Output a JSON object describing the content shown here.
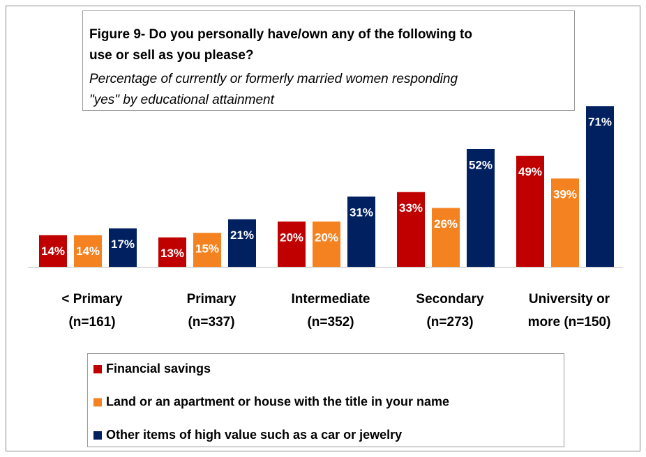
{
  "chart_data": {
    "type": "bar",
    "title": [
      "Figure 9- Do you personally have/own any of the following to",
      "use or sell as you please?"
    ],
    "subtitle": [
      "Percentage of currently or formerly married women responding",
      "\"yes\" by educational  attainment"
    ],
    "categories": [
      [
        "< Primary",
        "(n=161)"
      ],
      [
        "Primary",
        "(n=337)"
      ],
      [
        "Intermediate",
        "(n=352)"
      ],
      [
        "Secondary",
        "(n=273)"
      ],
      [
        "University or",
        "more (n=150)"
      ]
    ],
    "series": [
      {
        "name": "Financial savings",
        "color": "#c00000",
        "values": [
          14,
          13,
          20,
          33,
          49
        ],
        "value_labels": [
          "14%",
          "13%",
          "20%",
          "33%",
          "49%"
        ]
      },
      {
        "name": "Land or an apartment or house with the title in your name",
        "color": "#f58220",
        "values": [
          14,
          15,
          20,
          26,
          39
        ],
        "value_labels": [
          "14%",
          "15%",
          "20%",
          "26%",
          "39%"
        ]
      },
      {
        "name": "Other items of high value such as a car or jewelry",
        "color": "#002060",
        "values": [
          17,
          21,
          31,
          52,
          71
        ],
        "value_labels": [
          "17%",
          "21%",
          "31%",
          "52%",
          "71%"
        ]
      }
    ]
  }
}
